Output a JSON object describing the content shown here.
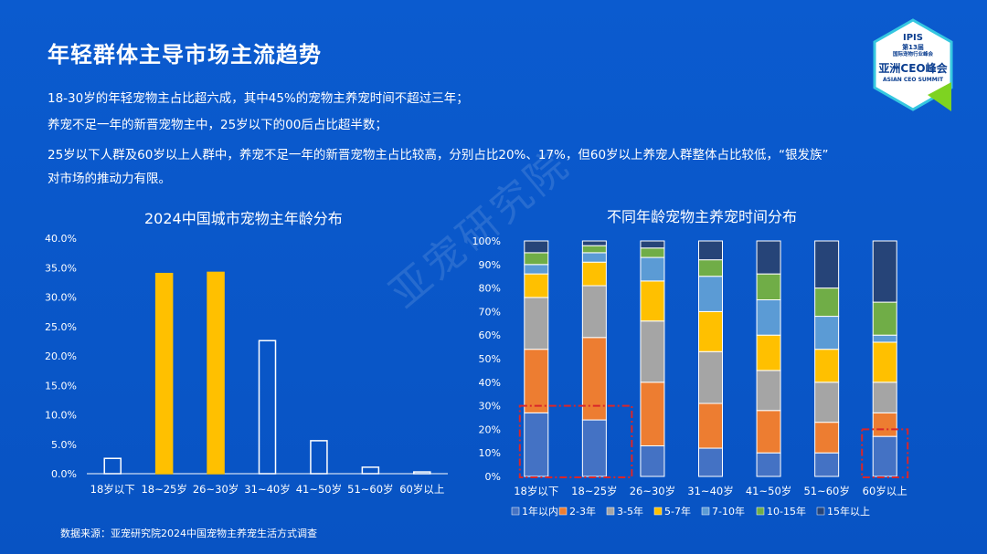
{
  "title": "年轻群体主导市场主流趋势",
  "paragraphs": [
    "18-30岁的年轻宠物主占比超六成，其中45%的宠物主养宠时间不超过三年；",
    "养宠不足一年的新晋宠物主中，25岁以下的00后占比超半数；",
    "25岁以下人群及60岁以上人群中，养宠不足一年的新晋宠物主占比较高，分别占比20%、17%，但60岁以上养宠人群整体占比较低，“银发族”",
    "对市场的推动力有限。"
  ],
  "source": "数据来源：亚宠研究院2024中国宠物主养宠生活方式调查",
  "watermark": "亚宠研究院",
  "logo": {
    "line1": "IPIS",
    "line2": "第13届",
    "line3": "国际宠物行业峰会",
    "line4": "亚洲CEO峰会",
    "line5": "ASIAN CEO SUMMIT"
  },
  "colors": {
    "background": "#0a55c6",
    "yellow": "#ffc000",
    "white": "#ffffff",
    "s1": "#4472c4",
    "s2": "#ed7d31",
    "s3": "#a5a5a5",
    "s4": "#ffc000",
    "s5": "#5b9bd5",
    "s6": "#70ad47",
    "s7": "#264478",
    "highlight": "#d9262a"
  },
  "chart_data": [
    {
      "type": "bar",
      "title": "2024中国城市宠物主年龄分布",
      "categories": [
        "18岁以下",
        "18~25岁",
        "26~30岁",
        "31~40岁",
        "41~50岁",
        "51~60岁",
        "60岁以上"
      ],
      "values": [
        2.6,
        34.0,
        34.2,
        22.6,
        5.6,
        1.1,
        0.3
      ],
      "highlighted": [
        false,
        true,
        true,
        false,
        false,
        false,
        false
      ],
      "yticks": [
        "0.0%",
        "5.0%",
        "10.0%",
        "15.0%",
        "20.0%",
        "25.0%",
        "30.0%",
        "35.0%",
        "40.0%"
      ],
      "ylim": [
        0,
        40
      ]
    },
    {
      "type": "bar",
      "stacked": true,
      "title": "不同年龄宠物主养宠时间分布",
      "categories": [
        "18岁以下",
        "18~25岁",
        "26~30岁",
        "31~40岁",
        "41~50岁",
        "51~60岁",
        "60岁以上"
      ],
      "yticks": [
        "0%",
        "10%",
        "20%",
        "30%",
        "40%",
        "50%",
        "60%",
        "70%",
        "80%",
        "90%",
        "100%"
      ],
      "ylim": [
        0,
        100
      ],
      "legend_position": "bottom",
      "series": [
        {
          "name": "1年以内",
          "color": "#4472c4",
          "values": [
            27,
            24,
            13,
            12,
            10,
            10,
            17
          ]
        },
        {
          "name": "2-3年",
          "color": "#ed7d31",
          "values": [
            27,
            35,
            27,
            19,
            18,
            13,
            10
          ]
        },
        {
          "name": "3-5年",
          "color": "#a5a5a5",
          "values": [
            22,
            22,
            26,
            22,
            17,
            17,
            13
          ]
        },
        {
          "name": "5-7年",
          "color": "#ffc000",
          "values": [
            10,
            10,
            17,
            17,
            15,
            14,
            17
          ]
        },
        {
          "name": "7-10年",
          "color": "#5b9bd5",
          "values": [
            4,
            4,
            10,
            15,
            15,
            14,
            3
          ]
        },
        {
          "name": "10-15年",
          "color": "#70ad47",
          "values": [
            5,
            3,
            4,
            7,
            11,
            12,
            14
          ]
        },
        {
          "name": "15年以上",
          "color": "#264478",
          "values": [
            5,
            2,
            3,
            8,
            14,
            20,
            26
          ]
        }
      ]
    }
  ]
}
